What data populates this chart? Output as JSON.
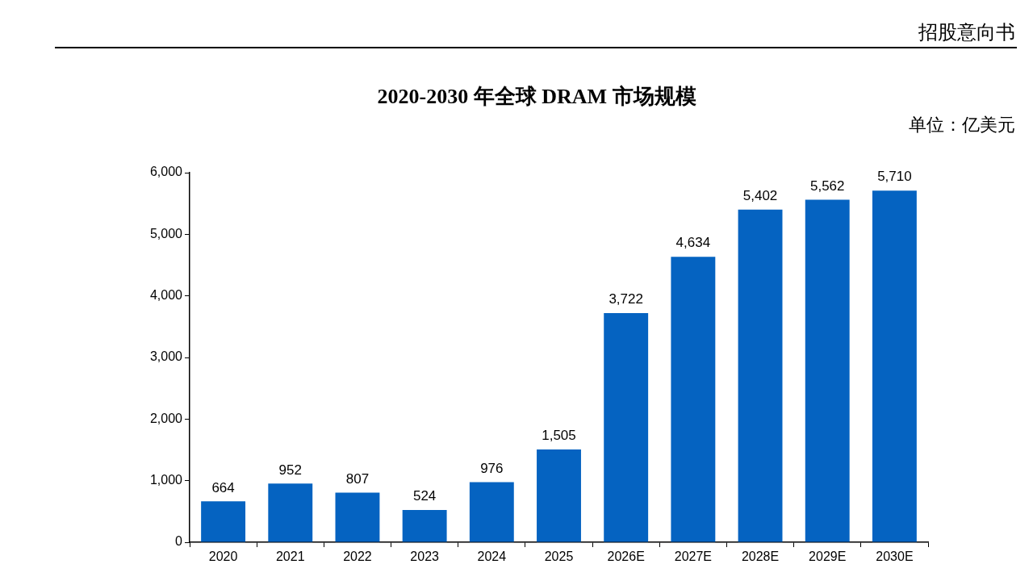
{
  "chart_data": {
    "type": "bar",
    "title": "2020-2030 年全球 DRAM 市场规模",
    "annotations": [
      "招股意向书",
      "单位：亿美元"
    ],
    "categories": [
      "2020",
      "2021",
      "2022",
      "2023",
      "2024",
      "2025",
      "2026E",
      "2027E",
      "2028E",
      "2029E",
      "2030E"
    ],
    "values": [
      664,
      952,
      807,
      524,
      976,
      1505,
      3722,
      4634,
      5402,
      5562,
      5710
    ],
    "value_labels": [
      "664",
      "952",
      "807",
      "524",
      "976",
      "1,505",
      "3,722",
      "4,634",
      "5,402",
      "5,562",
      "5,710"
    ],
    "color": "#0563c1",
    "ylim": [
      0,
      6000
    ],
    "yticks": [
      0,
      {
        "value": 1000,
        "label": "1,000"
      },
      {
        "value": 2000,
        "label": "2,000"
      },
      {
        "value": 3000,
        "label": "3,000"
      },
      {
        "value": 4000,
        "label": "4,000"
      },
      {
        "value": 5000,
        "label": "5,000"
      },
      {
        "value": 6000,
        "label": "6,000"
      }
    ],
    "grid": false,
    "legend": false
  }
}
